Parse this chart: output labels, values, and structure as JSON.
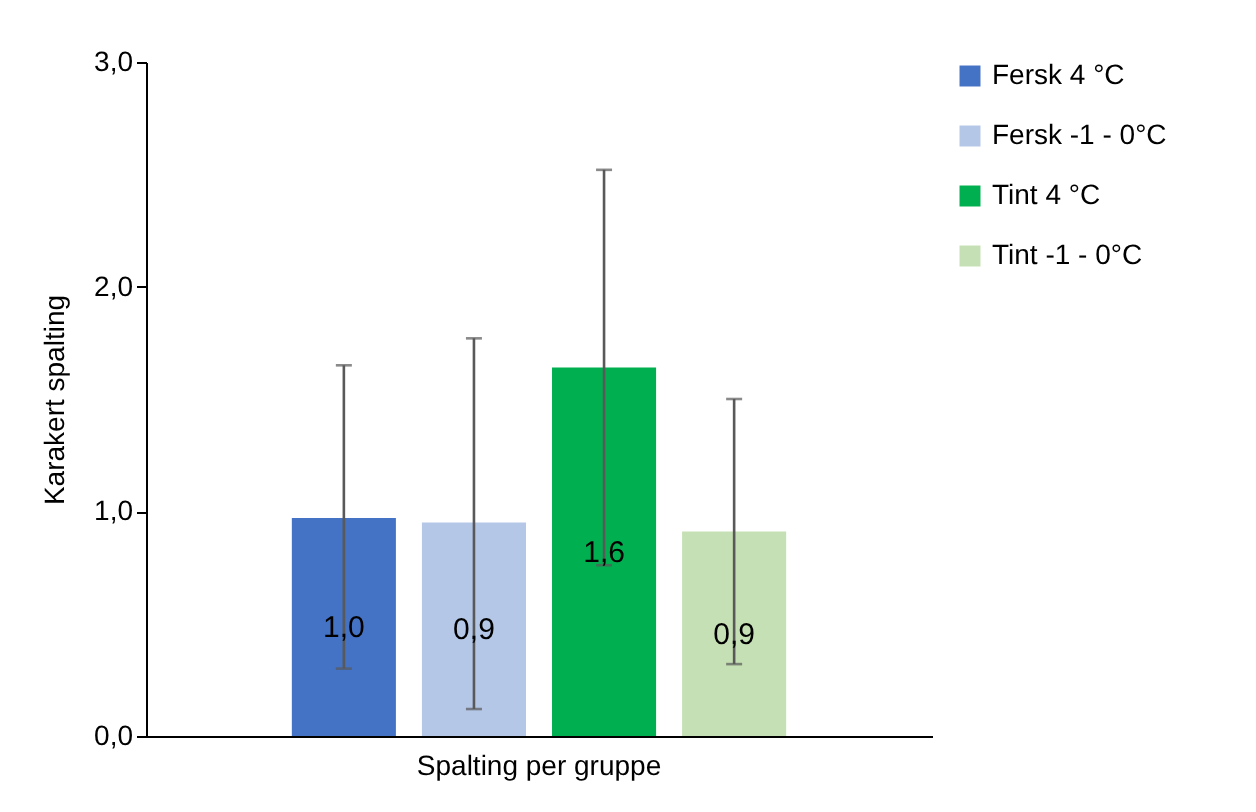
{
  "chart_data": {
    "type": "bar",
    "categories": [
      "Spalting per gruppe"
    ],
    "ylabel": "Karakert spalting",
    "ylim": [
      0,
      3
    ],
    "yticks": [
      {
        "value": 0,
        "label": "0,0"
      },
      {
        "value": 1,
        "label": "1,0"
      },
      {
        "value": 2,
        "label": "2,0"
      },
      {
        "value": 3,
        "label": "3,0"
      }
    ],
    "series": [
      {
        "name": "Fersk 4 °C",
        "color": "#4472c4",
        "values": [
          0.97
        ],
        "errors": [
          [
            0.3,
            1.65
          ]
        ],
        "value_labels": [
          "1,0"
        ]
      },
      {
        "name": "Fersk -1 - 0°C",
        "color": "#b4c7e7",
        "values": [
          0.95
        ],
        "errors": [
          [
            0.12,
            1.77
          ]
        ],
        "value_labels": [
          "0,9"
        ]
      },
      {
        "name": "Tint 4 °C",
        "color": "#00b050",
        "values": [
          1.64
        ],
        "errors": [
          [
            0.76,
            2.52
          ]
        ],
        "value_labels": [
          "1,6"
        ]
      },
      {
        "name": "Tint -1 - 0°C",
        "color": "#c5e0b4",
        "values": [
          0.91
        ],
        "errors": [
          [
            0.32,
            1.5
          ]
        ],
        "value_labels": [
          "0,9"
        ]
      }
    ],
    "grid": false,
    "legend": "right"
  }
}
